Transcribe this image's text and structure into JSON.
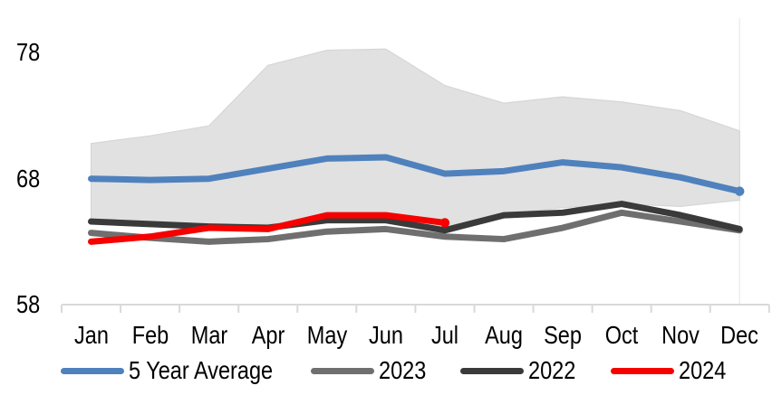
{
  "chart_data": {
    "type": "line",
    "title": "",
    "categories": [
      "Jan",
      "Feb",
      "Mar",
      "Apr",
      "May",
      "Jun",
      "Jul",
      "Aug",
      "Sep",
      "Oct",
      "Nov",
      "Dec"
    ],
    "y_axis": {
      "ticks": [
        78,
        68,
        58
      ],
      "min": 58,
      "max": 79.5,
      "grid": false
    },
    "band": {
      "name": "5 year range",
      "fill_color": "#e1e1e1",
      "edge_color": "#d6d6d6",
      "upper": [
        70.8,
        71.4,
        72.2,
        77.0,
        78.2,
        78.3,
        75.4,
        74.0,
        74.5,
        74.1,
        73.4,
        71.8
      ],
      "lower": [
        64.7,
        64.5,
        64.3,
        64.4,
        64.5,
        64.5,
        64.0,
        65.2,
        65.7,
        66.0,
        65.8,
        66.3
      ]
    },
    "series": [
      {
        "name": "5 Year Average",
        "color": "#4f81bd",
        "end_dot": true,
        "values": [
          68.0,
          67.9,
          68.0,
          68.8,
          69.6,
          69.7,
          68.4,
          68.6,
          69.3,
          68.9,
          68.1,
          67.0
        ]
      },
      {
        "name": "2023",
        "color": "#6f6f6f",
        "end_dot": false,
        "values": [
          63.7,
          63.3,
          63.0,
          63.2,
          63.8,
          64.0,
          63.4,
          63.2,
          64.1,
          65.3,
          64.6,
          63.9
        ]
      },
      {
        "name": "2022",
        "color": "#3a3a3a",
        "end_dot": false,
        "values": [
          64.6,
          64.4,
          64.2,
          64.1,
          64.7,
          64.7,
          63.9,
          65.1,
          65.3,
          66.0,
          65.1,
          64.0
        ]
      },
      {
        "name": "2024",
        "color": "#f60000",
        "end_dot": true,
        "values": [
          63.0,
          63.4,
          64.1,
          64.0,
          65.1,
          65.1,
          64.5
        ]
      }
    ],
    "legend_position": "bottom",
    "axis_color": "#d9d9d9",
    "right_border_color": "#ededed"
  }
}
